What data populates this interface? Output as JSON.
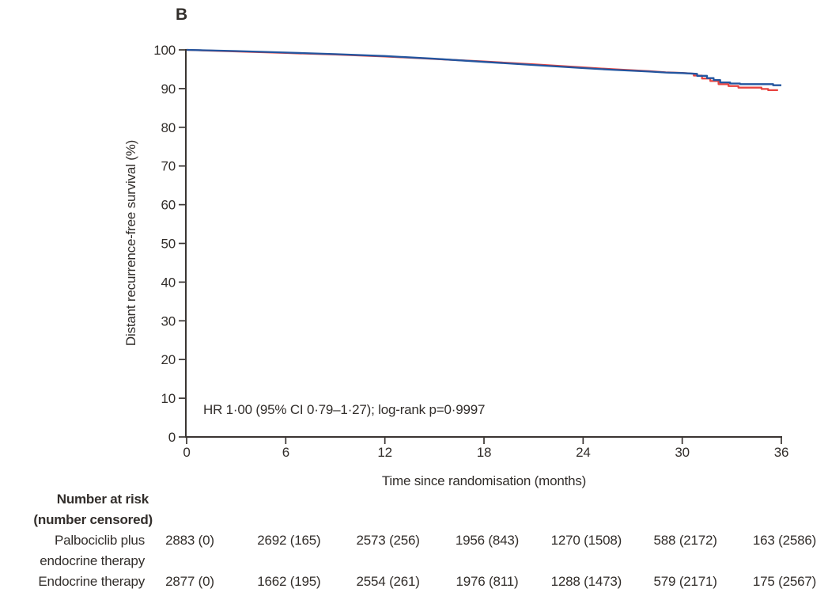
{
  "panel": {
    "label": "B"
  },
  "colors": {
    "palbociclib_line": "#23559f",
    "endocrine_line": "#e8433f",
    "axis": "#3a3532",
    "text": "#322e2b"
  },
  "chart_data": {
    "type": "line",
    "subtype": "kaplan-meier-step",
    "title": "",
    "xlabel": "Time since randomisation (months)",
    "ylabel": "Distant recurrence-free survival (%)",
    "xlim": [
      0,
      36
    ],
    "ylim": [
      0,
      100
    ],
    "x_ticks": [
      0,
      6,
      12,
      18,
      24,
      30,
      36
    ],
    "y_ticks": [
      0,
      10,
      20,
      30,
      40,
      50,
      60,
      70,
      80,
      90,
      100
    ],
    "grid": false,
    "legend": "none",
    "annotation": "HR 1·00 (95% CI 0·79–1·27); log-rank p=0·9997",
    "series": [
      {
        "name": "Endocrine therapy",
        "color": "#e8433f",
        "points": [
          [
            0,
            100
          ],
          [
            1,
            99.85
          ],
          [
            3,
            99.6
          ],
          [
            6,
            99.2
          ],
          [
            9,
            98.8
          ],
          [
            12,
            98.3
          ],
          [
            15,
            97.65
          ],
          [
            18,
            97.0
          ],
          [
            21,
            96.25
          ],
          [
            24,
            95.45
          ],
          [
            26,
            94.95
          ],
          [
            28,
            94.5
          ],
          [
            29,
            94.2
          ],
          [
            30,
            94.05
          ],
          [
            30.7,
            93.85
          ],
          [
            30.7,
            93.35
          ],
          [
            31.2,
            93.35
          ],
          [
            31.2,
            92.6
          ],
          [
            31.7,
            92.6
          ],
          [
            31.7,
            91.95
          ],
          [
            32.2,
            91.95
          ],
          [
            32.2,
            91.15
          ],
          [
            32.8,
            91.15
          ],
          [
            32.8,
            90.65
          ],
          [
            33.4,
            90.65
          ],
          [
            33.4,
            90.25
          ],
          [
            34.8,
            90.25
          ],
          [
            34.8,
            89.9
          ],
          [
            35.2,
            89.9
          ],
          [
            35.2,
            89.6
          ],
          [
            35.8,
            89.6
          ]
        ]
      },
      {
        "name": "Palbociclib plus endocrine therapy",
        "color": "#23559f",
        "points": [
          [
            0,
            100
          ],
          [
            1,
            99.9
          ],
          [
            3,
            99.7
          ],
          [
            6,
            99.3
          ],
          [
            9,
            98.9
          ],
          [
            12,
            98.4
          ],
          [
            15,
            97.7
          ],
          [
            18,
            96.9
          ],
          [
            21,
            96.1
          ],
          [
            24,
            95.3
          ],
          [
            26,
            94.8
          ],
          [
            28,
            94.4
          ],
          [
            29,
            94.15
          ],
          [
            30,
            94.0
          ],
          [
            30.9,
            93.8
          ],
          [
            30.9,
            93.3
          ],
          [
            31.5,
            93.3
          ],
          [
            31.5,
            92.7
          ],
          [
            31.9,
            92.7
          ],
          [
            31.9,
            92.2
          ],
          [
            32.3,
            92.2
          ],
          [
            32.3,
            91.6
          ],
          [
            32.9,
            91.6
          ],
          [
            32.9,
            91.3
          ],
          [
            33.5,
            91.3
          ],
          [
            33.5,
            91.15
          ],
          [
            35.5,
            91.15
          ],
          [
            35.5,
            90.85
          ],
          [
            36,
            90.85
          ]
        ]
      }
    ]
  },
  "risk_table": {
    "header": [
      "Number at risk",
      "(number censored)"
    ],
    "rows": [
      {
        "label_lines": [
          "Palbociclib plus",
          "endocrine therapy"
        ],
        "values": [
          "2883 (0)",
          "2692 (165)",
          "2573 (256)",
          "1956 (843)",
          "1270 (1508)",
          "588 (2172)",
          "163 (2586)"
        ]
      },
      {
        "label_lines": [
          "Endocrine therapy"
        ],
        "values": [
          "2877 (0)",
          "1662 (195)",
          "2554 (261)",
          "1976 (811)",
          "1288 (1473)",
          "579 (2171)",
          "175 (2567)"
        ]
      }
    ]
  }
}
